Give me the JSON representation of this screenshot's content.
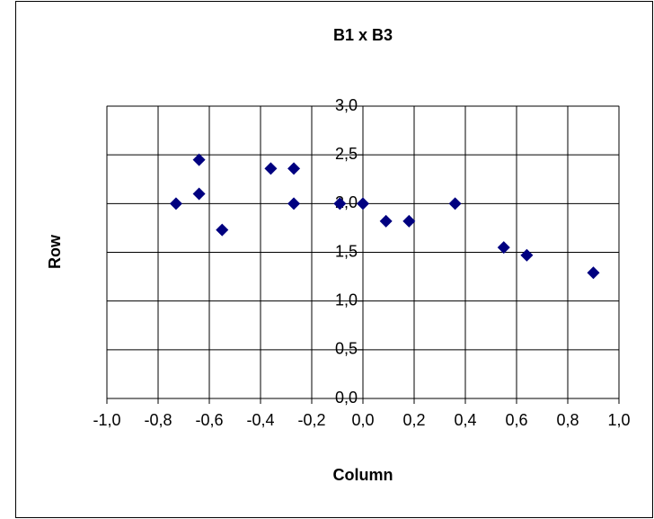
{
  "chart_data": {
    "type": "scatter",
    "title": "B1 x B3",
    "x_label": "Column",
    "y_label": "Row",
    "color": "#000080",
    "grid": true,
    "series": [
      {
        "name": "B1 x B3",
        "color": "#000080",
        "x": [
          -0.73,
          -0.64,
          -0.64,
          -0.55,
          -0.36,
          -0.27,
          -0.27,
          -0.09,
          0.0,
          0.09,
          0.18,
          0.36,
          0.55,
          0.64,
          0.9
        ],
        "values": [
          2.0,
          2.45,
          2.1,
          1.73,
          2.36,
          2.36,
          2.0,
          2.0,
          2.0,
          1.82,
          1.82,
          2.0,
          1.55,
          1.47,
          1.29
        ]
      }
    ],
    "xlim": [
      -1,
      1
    ],
    "xticks": [
      {
        "value": -1,
        "label": "-1,0"
      },
      {
        "value": -0.8,
        "label": "-0,8"
      },
      {
        "value": -0.6,
        "label": "-0,6"
      },
      {
        "value": -0.4,
        "label": "-0,4"
      },
      {
        "value": -0.2,
        "label": "-0,2"
      },
      {
        "value": 0,
        "label": "0,0"
      },
      {
        "value": 0.2,
        "label": "0,2"
      },
      {
        "value": 0.4,
        "label": "0,4"
      },
      {
        "value": 0.6,
        "label": "0,6"
      },
      {
        "value": 0.8,
        "label": "0,8"
      },
      {
        "value": 1,
        "label": "1,0"
      }
    ],
    "ylim": [
      0,
      3
    ],
    "yticks": [
      {
        "value": 0,
        "label": "0,0"
      },
      {
        "value": 0.5,
        "label": "0,5"
      },
      {
        "value": 1,
        "label": "1,0"
      },
      {
        "value": 1.5,
        "label": "1,5"
      },
      {
        "value": 2,
        "label": "2,0"
      },
      {
        "value": 2.5,
        "label": "2,5"
      },
      {
        "value": 3,
        "label": "3,0"
      }
    ]
  }
}
